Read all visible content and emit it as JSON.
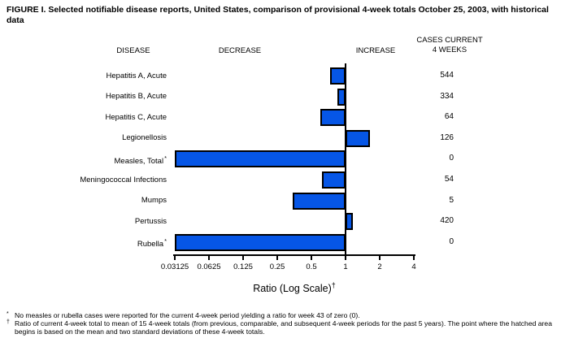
{
  "title": "FIGURE I. Selected notifiable disease reports, United States, comparison of provisional 4-week totals October 25, 2003, with historical data",
  "headers": {
    "disease": "DISEASE",
    "decrease": "DECREASE",
    "increase": "INCREASE",
    "cases_line1": "CASES CURRENT",
    "cases_line2": "4 WEEKS"
  },
  "chart_data": {
    "type": "bar",
    "orientation": "horizontal",
    "scale": "log2",
    "title": "FIGURE I. Selected notifiable disease reports, United States, comparison of provisional 4-week totals October 25, 2003, with historical data",
    "xlabel": "Ratio (Log Scale)",
    "xlabel_superscript": "†",
    "axis_ticks": [
      "0.03125",
      "0.0625",
      "0.125",
      "0.25",
      "0.5",
      "1",
      "2",
      "4"
    ],
    "axis_range": [
      0.03125,
      4
    ],
    "baseline_ratio": 1,
    "rows": [
      {
        "disease": "Hepatitis A, Acute",
        "superscript": "",
        "ratio": 0.73,
        "zero": false,
        "cases": "544"
      },
      {
        "disease": "Hepatitis B, Acute",
        "superscript": "",
        "ratio": 0.85,
        "zero": false,
        "cases": "334"
      },
      {
        "disease": "Hepatitis C, Acute",
        "superscript": "",
        "ratio": 0.6,
        "zero": false,
        "cases": "64"
      },
      {
        "disease": "Legionellosis",
        "superscript": "",
        "ratio": 1.64,
        "zero": false,
        "cases": "126"
      },
      {
        "disease": "Measles, Total",
        "superscript": "*",
        "ratio": 0.03125,
        "zero": true,
        "cases": "0"
      },
      {
        "disease": "Meningococcal Infections",
        "superscript": "",
        "ratio": 0.62,
        "zero": false,
        "cases": "54"
      },
      {
        "disease": "Mumps",
        "superscript": "",
        "ratio": 0.34,
        "zero": false,
        "cases": "5"
      },
      {
        "disease": "Pertussis",
        "superscript": "",
        "ratio": 1.16,
        "zero": false,
        "cases": "420"
      },
      {
        "disease": "Rubella",
        "superscript": "*",
        "ratio": 0.03125,
        "zero": true,
        "cases": "0"
      }
    ]
  },
  "footnotes": [
    {
      "marker": "*",
      "text": "No measles or rubella cases were reported for the current 4-week period yielding a ratio for week 43 of zero (0)."
    },
    {
      "marker": "†",
      "text": "Ratio of current 4-week total to mean of 15 4-week totals (from previous, comparable, and subsequent 4-week periods for the past 5 years). The point where the hatched area begins is based on the mean and two standard deviations of these 4-week totals."
    }
  ],
  "colors": {
    "bar_fill": "#0656E6",
    "bar_border": "#000000",
    "axis_line": "#000000",
    "background": "#FFFFFF"
  }
}
